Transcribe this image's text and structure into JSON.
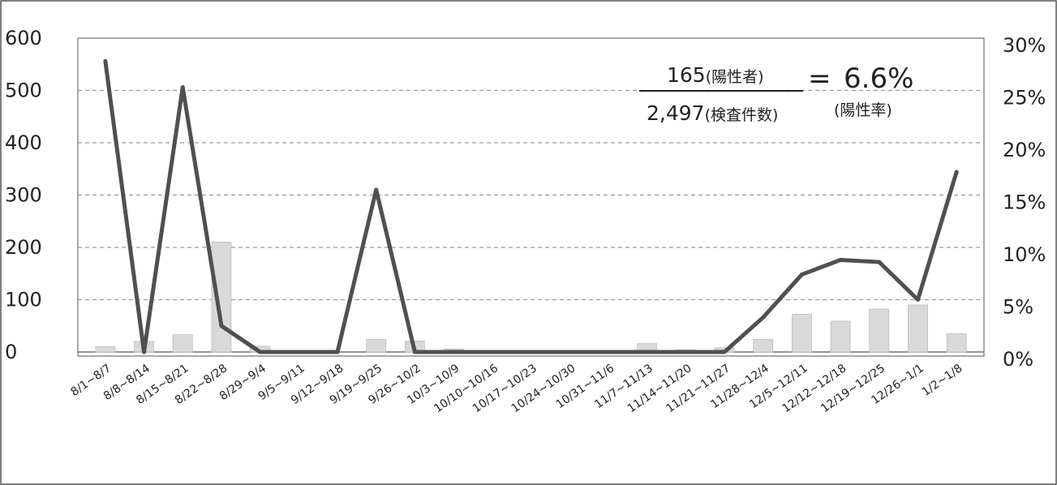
{
  "chart_data": {
    "type": "bar",
    "title": "",
    "xlabel": "",
    "ylabel": "",
    "ylim": [
      0,
      600
    ],
    "y2lim": [
      0,
      30
    ],
    "yticks": [
      "0",
      "100",
      "200",
      "300",
      "400",
      "500",
      "600"
    ],
    "y2ticks": [
      "0%",
      "5%",
      "10%",
      "15%",
      "20%",
      "25%",
      "30%"
    ],
    "grid": true,
    "categories": [
      "8/1~8/7",
      "8/8~8/14",
      "8/15~8/21",
      "8/22~8/28",
      "8/29~9/4",
      "9/5~9/11",
      "9/12~9/18",
      "9/19~9/25",
      "9/26~10/2",
      "10/3~10/9",
      "10/10~10/16",
      "10/17~10/23",
      "10/24~10/30",
      "10/31~11/6",
      "11/7~11/13",
      "11/14~11/20",
      "11/21~11/27",
      "11/28~12/4",
      "12/5~12/11",
      "12/12~12/18",
      "12/19~12/25",
      "12/26~1/1",
      "1/2~1/8"
    ],
    "series": [
      {
        "type": "bar",
        "axis": "left",
        "values": [
          10,
          20,
          33,
          210,
          11,
          0,
          0,
          24,
          21,
          6,
          0,
          0,
          0,
          0,
          16,
          4,
          8,
          24,
          72,
          59,
          82,
          90,
          35
        ]
      },
      {
        "type": "line",
        "axis": "right",
        "values": [
          27.8,
          0,
          25.3,
          2.5,
          0,
          0,
          0,
          15.5,
          0,
          0,
          0,
          0,
          0,
          0,
          0,
          0,
          0,
          3.3,
          7.4,
          8.8,
          8.6,
          5.0,
          17.2
        ]
      }
    ],
    "colors": {
      "bar": "#d9d9d9",
      "line": "#505050",
      "grid": "#9a9a9a"
    },
    "annotation": {
      "numerator": "165",
      "numerator_label": "(陽性者)",
      "denominator": "2,497",
      "denominator_label": "(検査件数)",
      "equals": "=",
      "result": "6.6%",
      "result_label": "(陽性率)"
    }
  }
}
